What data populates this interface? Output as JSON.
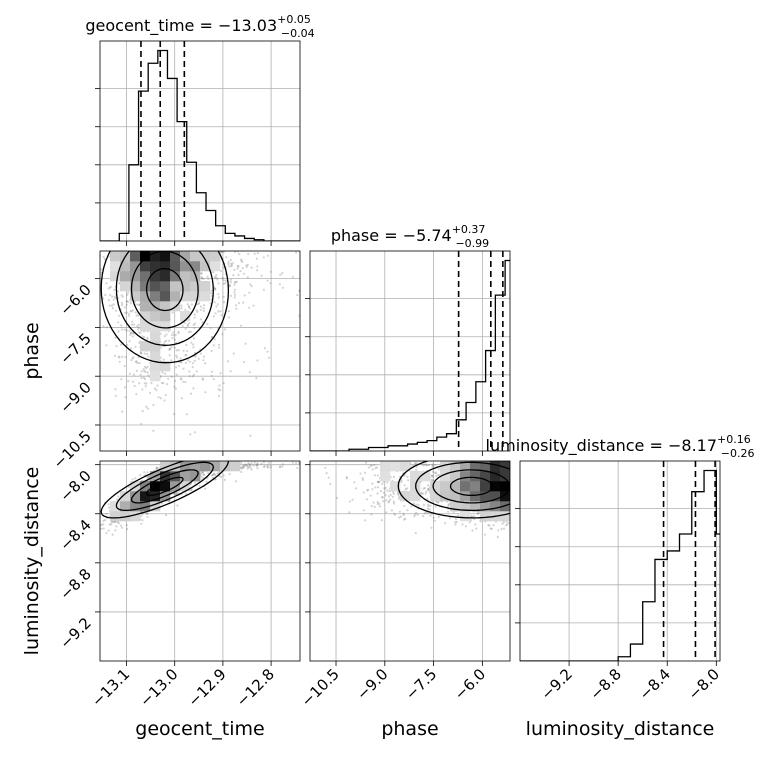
{
  "chart_data": {
    "type": "corner",
    "parameters": [
      "geocent_time",
      "phase",
      "luminosity_distance"
    ],
    "axis_labels": [
      "geocent_time",
      "phase",
      "luminosity_distance"
    ],
    "grid": true,
    "colors": {
      "line": "#000000",
      "grid": "#b0b0b0",
      "scatter": "#808080",
      "density_high": "#000000",
      "density_low": "#ffffff"
    },
    "ranges": {
      "geocent_time": [
        -13.155,
        -12.74
      ],
      "phase": [
        -11.3,
        -5.15
      ],
      "luminosity_distance": [
        -9.6,
        -7.97
      ]
    },
    "ticks": {
      "geocent_time": [
        -13.1,
        -13.0,
        -12.9,
        -12.8
      ],
      "phase": [
        -10.5,
        -9.0,
        -7.5,
        -6.0
      ],
      "luminosity_distance": [
        -9.2,
        -8.8,
        -8.4,
        -8.0
      ]
    },
    "tick_labels": {
      "geocent_time": [
        "−13.1",
        "−13.0",
        "−12.9",
        "−12.8"
      ],
      "phase": [
        "−10.5",
        "−9.0",
        "−7.5",
        "−6.0"
      ],
      "luminosity_distance": [
        "−9.2",
        "−8.8",
        "−8.4",
        "−8.0"
      ]
    },
    "titles": [
      {
        "name": "geocent_time = ",
        "median": "−13.03",
        "plus": "+0.05",
        "minus": "−0.04"
      },
      {
        "name": "phase = ",
        "median": "−5.74",
        "plus": "+0.37",
        "minus": "−0.99"
      },
      {
        "name": "luminosity_distance = ",
        "median": "−8.17",
        "plus": "+0.16",
        "minus": "−0.26"
      }
    ],
    "quantiles": {
      "geocent_time": [
        -13.07,
        -13.03,
        -12.98
      ],
      "phase": [
        -6.73,
        -5.74,
        -5.37
      ],
      "luminosity_distance": [
        -8.43,
        -8.17,
        -8.01
      ]
    },
    "histograms": {
      "geocent_time": {
        "edges": [
          -13.155,
          -13.135,
          -13.115,
          -13.095,
          -13.075,
          -13.055,
          -13.035,
          -13.015,
          -12.995,
          -12.975,
          -12.955,
          -12.935,
          -12.915,
          -12.895,
          -12.875,
          -12.855,
          -12.835,
          -12.815,
          -12.795,
          -12.775,
          -12.755,
          -12.74
        ],
        "counts": [
          0,
          0,
          6,
          60,
          118,
          140,
          150,
          128,
          94,
          62,
          38,
          24,
          12,
          6,
          4,
          2,
          1,
          0,
          0,
          0,
          0
        ],
        "max": 150
      },
      "phase": {
        "edges": [
          -11.3,
          -11.0,
          -10.7,
          -10.4,
          -10.1,
          -9.8,
          -9.5,
          -9.2,
          -8.9,
          -8.6,
          -8.3,
          -8.0,
          -7.7,
          -7.4,
          -7.1,
          -6.8,
          -6.5,
          -6.2,
          -5.9,
          -5.6,
          -5.3,
          -5.15
        ],
        "counts": [
          0,
          0,
          0,
          0,
          1,
          1,
          2,
          2,
          3,
          3,
          4,
          5,
          6,
          8,
          10,
          18,
          28,
          40,
          58,
          90,
          110
        ],
        "max": 110
      },
      "luminosity_distance": {
        "edges": [
          -9.6,
          -9.5,
          -9.4,
          -9.3,
          -9.2,
          -9.1,
          -9.0,
          -8.9,
          -8.8,
          -8.7,
          -8.6,
          -8.5,
          -8.4,
          -8.3,
          -8.2,
          -8.1,
          -8.0,
          -7.97
        ],
        "counts": [
          0,
          0,
          0,
          0,
          0,
          0,
          0,
          0,
          2,
          8,
          28,
          48,
          52,
          60,
          80,
          90,
          60
        ],
        "max": 90
      }
    },
    "samples_2d": {
      "count": 2200,
      "center": {
        "geocent_time": -13.03,
        "phase": -5.74,
        "luminosity_distance": -8.17
      },
      "correlation_time_distance": "positive",
      "phase_prior_upper": -5.15
    }
  }
}
